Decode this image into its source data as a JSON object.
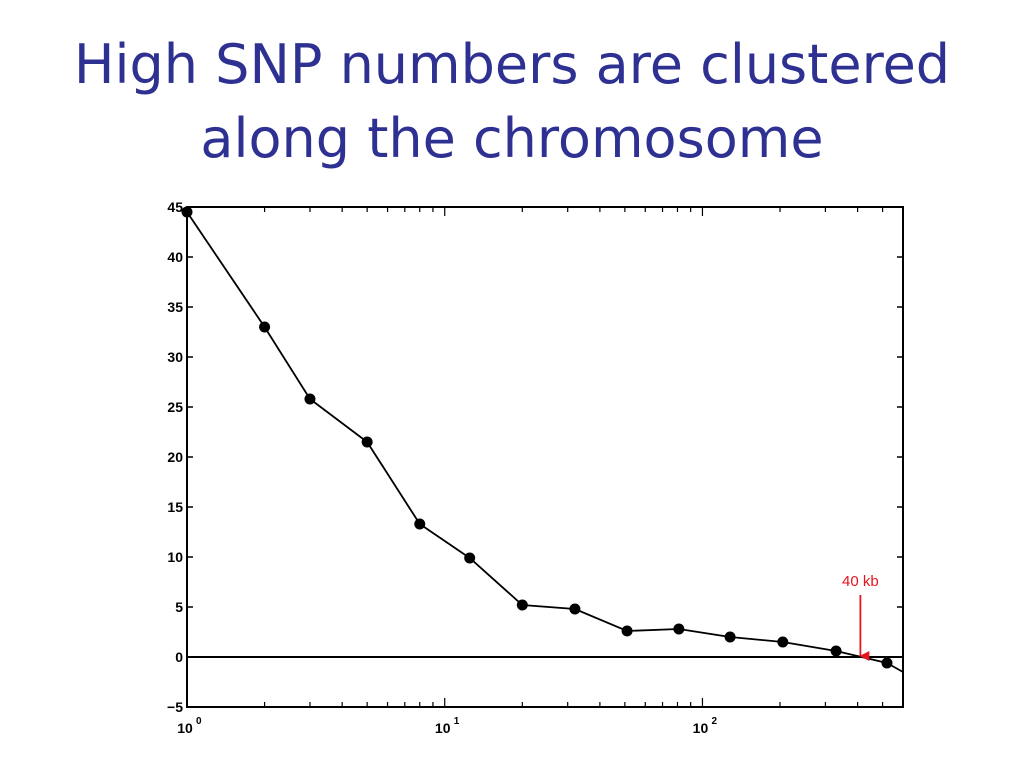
{
  "slide": {
    "title_line1": "High SNP numbers are clustered",
    "title_line2": "along the chromosome",
    "title_color": "#2e3192"
  },
  "chart_data": {
    "type": "line",
    "title": "",
    "xlabel": "",
    "ylabel": "",
    "x_scale": "log",
    "xlim": [
      1,
      600
    ],
    "ylim": [
      -5,
      45
    ],
    "grid": false,
    "legend": "none",
    "x_ticks": [
      {
        "value": 1,
        "base": "10",
        "exp": "0"
      },
      {
        "value": 10,
        "base": "10",
        "exp": "1"
      },
      {
        "value": 100,
        "base": "10",
        "exp": "2"
      }
    ],
    "y_ticks": [
      "−5",
      "0",
      "5",
      "10",
      "15",
      "20",
      "25",
      "30",
      "35",
      "40",
      "45"
    ],
    "series": [
      {
        "color": "#000000",
        "points": [
          {
            "x": 1,
            "y": 44.5
          },
          {
            "x": 2,
            "y": 33
          },
          {
            "x": 3,
            "y": 25.8
          },
          {
            "x": 5,
            "y": 21.5
          },
          {
            "x": 8,
            "y": 13.3
          },
          {
            "x": 12.5,
            "y": 9.9
          },
          {
            "x": 20,
            "y": 5.2
          },
          {
            "x": 32,
            "y": 4.8
          },
          {
            "x": 51,
            "y": 2.6
          },
          {
            "x": 81,
            "y": 2.8
          },
          {
            "x": 128,
            "y": 2.0
          },
          {
            "x": 205,
            "y": 1.5
          },
          {
            "x": 330,
            "y": 0.6
          },
          {
            "x": 520,
            "y": -0.6
          }
        ],
        "line_extends_to": {
          "x": 600,
          "y": -1.5
        }
      }
    ],
    "reference_line": {
      "y": 0,
      "color": "#000000"
    },
    "annotations": [
      {
        "text": "40 kb",
        "arrow_to": {
          "x": 410,
          "y": 0
        },
        "color": "#e8141c"
      }
    ]
  }
}
